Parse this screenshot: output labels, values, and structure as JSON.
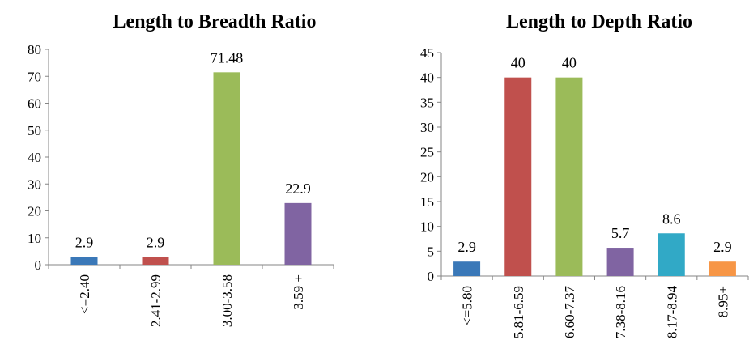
{
  "chart_data": [
    {
      "type": "bar",
      "title": "Length to Breadth Ratio",
      "xlabel": "",
      "ylabel": "",
      "categories": [
        "<=2.40",
        "2.41-2.99",
        "3.00-3.58",
        "3.59 +"
      ],
      "values": [
        2.9,
        2.9,
        71.48,
        22.9
      ],
      "data_labels": [
        "2.9",
        "2.9",
        "71.48",
        "22.9"
      ],
      "ylim": [
        0,
        80
      ],
      "yticks": [
        0,
        10,
        20,
        30,
        40,
        50,
        60,
        70,
        80
      ],
      "colors": [
        "#3a78b8",
        "#c0504d",
        "#9bbb59",
        "#8064a2"
      ],
      "grid": false,
      "legend": "none"
    },
    {
      "type": "bar",
      "title": "Length to Depth Ratio",
      "xlabel": "",
      "ylabel": "",
      "categories": [
        "<=5.80",
        "5.81-6.59",
        "6.60-7.37",
        "7.38-8.16",
        "8.17-8.94",
        "8.95+"
      ],
      "values": [
        2.9,
        40,
        40,
        5.7,
        8.6,
        2.9
      ],
      "data_labels": [
        "2.9",
        "40",
        "40",
        "5.7",
        "8.6",
        "2.9"
      ],
      "ylim": [
        0,
        45
      ],
      "yticks": [
        0,
        5,
        10,
        15,
        20,
        25,
        30,
        35,
        40,
        45
      ],
      "colors": [
        "#3a78b8",
        "#c0504d",
        "#9bbb59",
        "#8064a2",
        "#31a9c6",
        "#f79646"
      ],
      "grid": false,
      "legend": "none"
    }
  ]
}
